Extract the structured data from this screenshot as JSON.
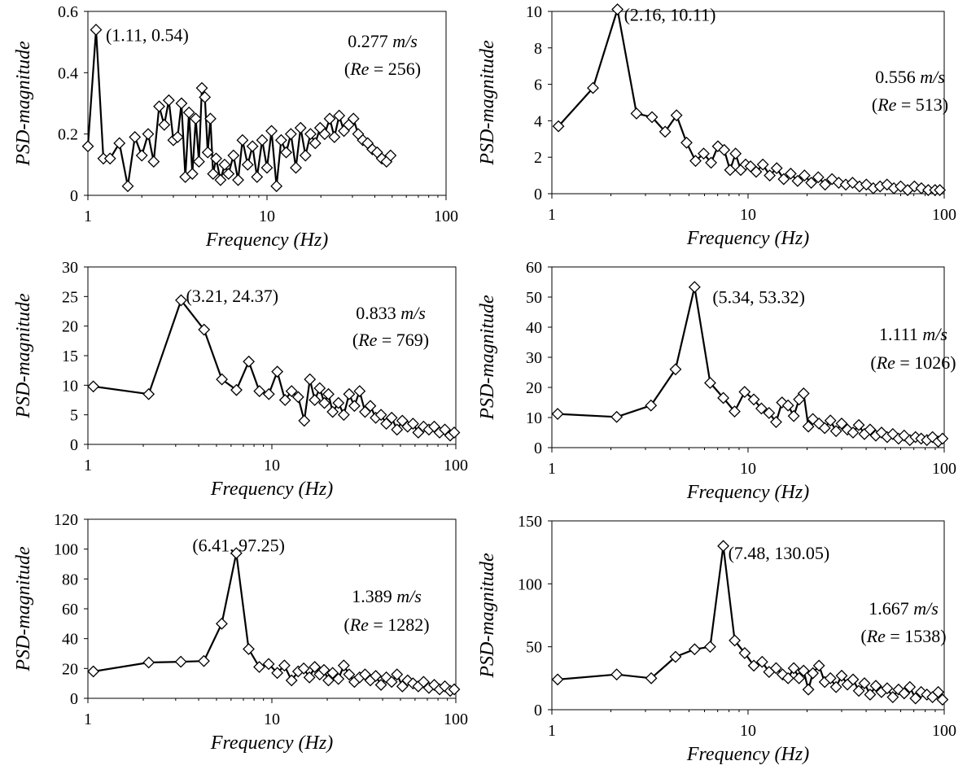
{
  "chart_data": [
    {
      "type": "line",
      "title": "",
      "xlabel": "Frequency (Hz)",
      "ylabel": "PSD-magnitude",
      "x_scale": "log",
      "xlim": [
        1,
        100
      ],
      "ylim": [
        0,
        0.6
      ],
      "xticks": [
        "1",
        "10",
        "100"
      ],
      "yticks": [
        "0",
        "0.2",
        "0.4",
        "0.6"
      ],
      "grid": false,
      "marker": "diamond-open",
      "peak": {
        "x": 1.11,
        "y": 0.54,
        "label": "(1.11, 0.54)"
      },
      "velocity": "0.277",
      "velocity_unit": "m/s",
      "re_prefix": "(",
      "re_symbol": "Re",
      "re_value": " = 256)",
      "x": [
        1.0,
        1.11,
        1.22,
        1.33,
        1.5,
        1.67,
        1.83,
        2.0,
        2.17,
        2.33,
        2.5,
        2.67,
        2.83,
        3.0,
        3.17,
        3.33,
        3.5,
        3.67,
        3.83,
        4.0,
        4.17,
        4.33,
        4.5,
        4.67,
        4.83,
        5.0,
        5.2,
        5.5,
        5.8,
        6.1,
        6.5,
        6.9,
        7.3,
        7.8,
        8.3,
        8.8,
        9.4,
        10.0,
        10.6,
        11.3,
        12.0,
        12.8,
        13.6,
        14.5,
        15.4,
        16.4,
        17.5,
        18.6,
        19.8,
        21.0,
        22.4,
        23.8,
        25.3,
        26.9,
        28.6,
        30.4,
        32.3,
        34.3,
        36.5,
        38.8,
        41.2,
        43.8,
        46.5,
        49.0
      ],
      "y": [
        0.16,
        0.54,
        0.12,
        0.12,
        0.17,
        0.03,
        0.19,
        0.13,
        0.2,
        0.11,
        0.29,
        0.23,
        0.31,
        0.18,
        0.19,
        0.3,
        0.06,
        0.27,
        0.07,
        0.25,
        0.11,
        0.35,
        0.32,
        0.14,
        0.25,
        0.07,
        0.12,
        0.05,
        0.1,
        0.07,
        0.13,
        0.05,
        0.18,
        0.1,
        0.16,
        0.06,
        0.18,
        0.09,
        0.21,
        0.03,
        0.18,
        0.14,
        0.2,
        0.09,
        0.22,
        0.13,
        0.2,
        0.17,
        0.22,
        0.2,
        0.25,
        0.19,
        0.26,
        0.21,
        0.23,
        0.25,
        0.2,
        0.18,
        0.17,
        0.15,
        0.14,
        0.12,
        0.11,
        0.13
      ]
    },
    {
      "type": "line",
      "title": "",
      "xlabel": "Frequency (Hz)",
      "ylabel": "PSD-magnitude",
      "x_scale": "log",
      "xlim": [
        1,
        100
      ],
      "ylim": [
        0,
        10
      ],
      "xticks": [
        "1",
        "10",
        "100"
      ],
      "yticks": [
        "0",
        "2",
        "4",
        "6",
        "8",
        "10"
      ],
      "grid": false,
      "marker": "diamond-open",
      "peak": {
        "x": 2.16,
        "y": 10.11,
        "label": "(2.16, 10.11)"
      },
      "velocity": "0.556",
      "velocity_unit": "m/s",
      "re_prefix": "(",
      "re_symbol": "Re",
      "re_value": " = 513)",
      "x": [
        1.08,
        1.62,
        2.16,
        2.7,
        3.24,
        3.78,
        4.32,
        4.86,
        5.4,
        5.94,
        6.48,
        7.02,
        7.56,
        8.1,
        8.64,
        9.18,
        9.72,
        10.3,
        11.0,
        11.9,
        12.9,
        14.0,
        15.2,
        16.5,
        17.9,
        19.4,
        21.0,
        22.8,
        24.7,
        26.8,
        29.0,
        31.5,
        34.1,
        37.0,
        40.1,
        43.5,
        47.1,
        51.1,
        55.4,
        60.0,
        65.1,
        70.5,
        76.5,
        82.9,
        89.8,
        95.0
      ],
      "y": [
        3.7,
        5.8,
        10.11,
        4.4,
        4.2,
        3.4,
        4.3,
        2.8,
        1.8,
        2.2,
        1.7,
        2.6,
        2.4,
        1.3,
        2.2,
        1.3,
        1.6,
        1.5,
        1.2,
        1.6,
        1.0,
        1.4,
        0.8,
        1.1,
        0.7,
        1.0,
        0.6,
        0.9,
        0.5,
        0.8,
        0.6,
        0.5,
        0.6,
        0.4,
        0.5,
        0.3,
        0.4,
        0.5,
        0.3,
        0.4,
        0.2,
        0.4,
        0.3,
        0.2,
        0.2,
        0.2
      ]
    },
    {
      "type": "line",
      "title": "",
      "xlabel": "Frequency (Hz)",
      "ylabel": "PSD-magnitude",
      "x_scale": "log",
      "xlim": [
        1,
        100
      ],
      "ylim": [
        0,
        30
      ],
      "xticks": [
        "1",
        "10",
        "100"
      ],
      "yticks": [
        "0",
        "5",
        "10",
        "15",
        "20",
        "25",
        "30"
      ],
      "grid": false,
      "marker": "diamond-open",
      "peak": {
        "x": 3.21,
        "y": 24.37,
        "label": "(3.21, 24.37)"
      },
      "velocity": "0.833",
      "velocity_unit": "m/s",
      "re_prefix": "(",
      "re_symbol": "Re",
      "re_value": " = 769)",
      "x": [
        1.07,
        2.14,
        3.21,
        4.28,
        5.35,
        6.42,
        7.49,
        8.56,
        9.63,
        10.7,
        11.8,
        12.8,
        13.9,
        15.0,
        16.1,
        17.1,
        18.2,
        19.3,
        20.3,
        21.4,
        23.0,
        24.6,
        26.3,
        28.1,
        30.0,
        32.1,
        34.3,
        36.7,
        39.2,
        41.9,
        44.8,
        47.9,
        51.2,
        54.7,
        58.5,
        62.5,
        66.8,
        71.4,
        76.3,
        81.6,
        87.2,
        93.2,
        98.0
      ],
      "y": [
        9.8,
        8.5,
        24.37,
        19.4,
        11.0,
        9.2,
        14.0,
        9.0,
        8.5,
        12.3,
        7.5,
        9.0,
        8.0,
        4.0,
        11.0,
        7.5,
        9.5,
        7.0,
        8.5,
        5.5,
        7.0,
        5.0,
        8.5,
        6.5,
        9.0,
        5.5,
        6.5,
        4.5,
        5.0,
        3.5,
        4.5,
        2.5,
        4.0,
        3.0,
        3.5,
        2.0,
        3.0,
        2.5,
        3.0,
        2.0,
        2.5,
        1.5,
        2.0
      ]
    },
    {
      "type": "line",
      "title": "",
      "xlabel": "Frequency (Hz)",
      "ylabel": "PSD-magnitude",
      "x_scale": "log",
      "xlim": [
        1,
        100
      ],
      "ylim": [
        0,
        60
      ],
      "xticks": [
        "1",
        "10",
        "100"
      ],
      "yticks": [
        "0",
        "10",
        "20",
        "30",
        "40",
        "50",
        "60"
      ],
      "grid": false,
      "marker": "diamond-open",
      "peak": {
        "x": 5.34,
        "y": 53.32,
        "label": "(5.34, 53.32)"
      },
      "velocity": "1.111",
      "velocity_unit": "m/s",
      "re_prefix": "(",
      "re_symbol": "Re",
      "re_value": " = 1026)",
      "x": [
        1.07,
        2.14,
        3.2,
        4.27,
        5.34,
        6.41,
        7.48,
        8.54,
        9.61,
        10.7,
        11.7,
        12.8,
        13.9,
        14.9,
        16.0,
        17.1,
        18.2,
        19.2,
        20.3,
        21.4,
        23.0,
        24.6,
        26.3,
        28.1,
        30.0,
        32.1,
        34.3,
        36.7,
        39.2,
        41.9,
        44.8,
        47.9,
        51.2,
        54.7,
        58.5,
        62.5,
        66.8,
        71.4,
        76.3,
        81.6,
        87.2,
        93.2,
        98.0
      ],
      "y": [
        11.2,
        10.2,
        14.0,
        26.0,
        53.32,
        21.5,
        16.5,
        12.0,
        18.5,
        16.0,
        13.0,
        11.5,
        8.5,
        15.0,
        14.0,
        10.5,
        16.0,
        18.0,
        7.0,
        9.5,
        8.0,
        6.5,
        9.0,
        5.5,
        8.0,
        6.0,
        5.0,
        7.5,
        4.5,
        6.0,
        4.0,
        5.0,
        3.5,
        4.5,
        3.0,
        4.0,
        2.5,
        3.5,
        3.0,
        2.5,
        3.5,
        2.0,
        3.0
      ]
    },
    {
      "type": "line",
      "title": "",
      "xlabel": "Frequency (Hz)",
      "ylabel": "PSD-magnitude",
      "x_scale": "log",
      "xlim": [
        1,
        100
      ],
      "ylim": [
        0,
        120
      ],
      "xticks": [
        "1",
        "10",
        "100"
      ],
      "yticks": [
        "0",
        "20",
        "40",
        "60",
        "80",
        "100",
        "120"
      ],
      "grid": false,
      "marker": "diamond-open",
      "peak": {
        "x": 6.41,
        "y": 97.25,
        "label": "(6.41, 97.25)"
      },
      "velocity": "1.389",
      "velocity_unit": "m/s",
      "re_prefix": "(",
      "re_symbol": "Re",
      "re_value": " = 1282)",
      "x": [
        1.07,
        2.14,
        3.2,
        4.27,
        5.34,
        6.41,
        7.48,
        8.54,
        9.61,
        10.7,
        11.7,
        12.8,
        13.9,
        14.9,
        16.0,
        17.1,
        18.2,
        19.2,
        20.3,
        21.4,
        23.0,
        24.6,
        26.3,
        28.1,
        30.0,
        32.1,
        34.3,
        36.7,
        39.2,
        41.9,
        44.8,
        47.9,
        51.2,
        54.7,
        58.5,
        62.5,
        66.8,
        71.4,
        76.3,
        81.6,
        87.2,
        93.2,
        98.0
      ],
      "y": [
        18.0,
        24.0,
        24.5,
        25.0,
        50.0,
        97.25,
        33.0,
        21.0,
        23.0,
        17.0,
        22.0,
        12.0,
        18.0,
        20.0,
        14.0,
        21.0,
        16.0,
        19.0,
        12.0,
        17.0,
        13.0,
        22.0,
        16.0,
        11.0,
        14.0,
        16.0,
        12.0,
        15.0,
        9.0,
        14.0,
        11.0,
        16.0,
        8.0,
        12.0,
        10.0,
        8.0,
        11.0,
        7.0,
        9.0,
        6.0,
        8.0,
        5.0,
        6.0
      ]
    },
    {
      "type": "line",
      "title": "",
      "xlabel": "Frequency (Hz)",
      "ylabel": "PSD-magnitude",
      "x_scale": "log",
      "xlim": [
        1,
        100
      ],
      "ylim": [
        0,
        150
      ],
      "xticks": [
        "1",
        "10",
        "100"
      ],
      "yticks": [
        "0",
        "50",
        "100",
        "150"
      ],
      "grid": false,
      "marker": "diamond-open",
      "peak": {
        "x": 7.48,
        "y": 130.05,
        "label": "(7.48, 130.05)"
      },
      "velocity": "1.667",
      "velocity_unit": "m/s",
      "re_prefix": "(",
      "re_symbol": "Re",
      "re_value": " = 1538)",
      "x": [
        1.07,
        2.14,
        3.21,
        4.27,
        5.34,
        6.41,
        7.48,
        8.55,
        9.62,
        10.7,
        11.8,
        12.8,
        13.9,
        15.0,
        16.0,
        17.1,
        18.2,
        19.2,
        20.3,
        21.4,
        23.0,
        24.6,
        26.3,
        28.1,
        30.0,
        32.1,
        34.3,
        36.7,
        39.2,
        41.9,
        44.8,
        47.9,
        51.2,
        54.7,
        58.5,
        62.5,
        66.8,
        71.4,
        76.3,
        81.6,
        87.2,
        93.2,
        98.0
      ],
      "y": [
        24.0,
        28.0,
        25.0,
        42.0,
        48.0,
        50.0,
        130.05,
        55.0,
        45.0,
        35.0,
        38.0,
        30.0,
        33.0,
        28.0,
        25.0,
        33.0,
        25.0,
        31.0,
        16.0,
        29.0,
        35.0,
        22.0,
        25.0,
        18.0,
        27.0,
        20.0,
        24.0,
        15.0,
        21.0,
        12.0,
        19.0,
        14.0,
        17.0,
        10.0,
        16.0,
        13.0,
        18.0,
        9.0,
        14.0,
        12.0,
        10.0,
        14.0,
        8.0
      ]
    }
  ]
}
